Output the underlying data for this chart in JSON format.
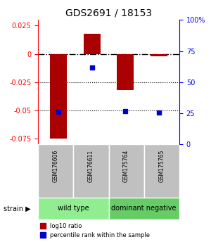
{
  "title": "GDS2691 / 18153",
  "samples": [
    "GSM176606",
    "GSM176611",
    "GSM175764",
    "GSM175765"
  ],
  "log10_ratios": [
    -0.075,
    0.018,
    -0.032,
    -0.002
  ],
  "percentile_ranks": [
    26.0,
    62.0,
    27.0,
    25.5
  ],
  "bar_color": "#AA0000",
  "dot_color": "#0000CC",
  "ylim_left": [
    -0.08,
    0.03
  ],
  "ylim_right": [
    0,
    100
  ],
  "yticks_left": [
    -0.075,
    -0.05,
    -0.025,
    0,
    0.025
  ],
  "yticks_right": [
    0,
    25,
    50,
    75,
    100
  ],
  "ytick_right_labels": [
    "0",
    "25",
    "50",
    "75",
    "100%"
  ],
  "hline_0_color": "#000000",
  "hline_dotted_values": [
    -0.025,
    -0.05
  ],
  "group1_label": "wild type",
  "group2_label": "dominant negative",
  "group1_color": "#90EE90",
  "group2_color": "#66CC66",
  "strain_label": "strain",
  "legend_bar_label": "log10 ratio",
  "legend_dot_label": "percentile rank within the sample",
  "sample_box_color": "#C0C0C0",
  "bar_width": 0.5
}
